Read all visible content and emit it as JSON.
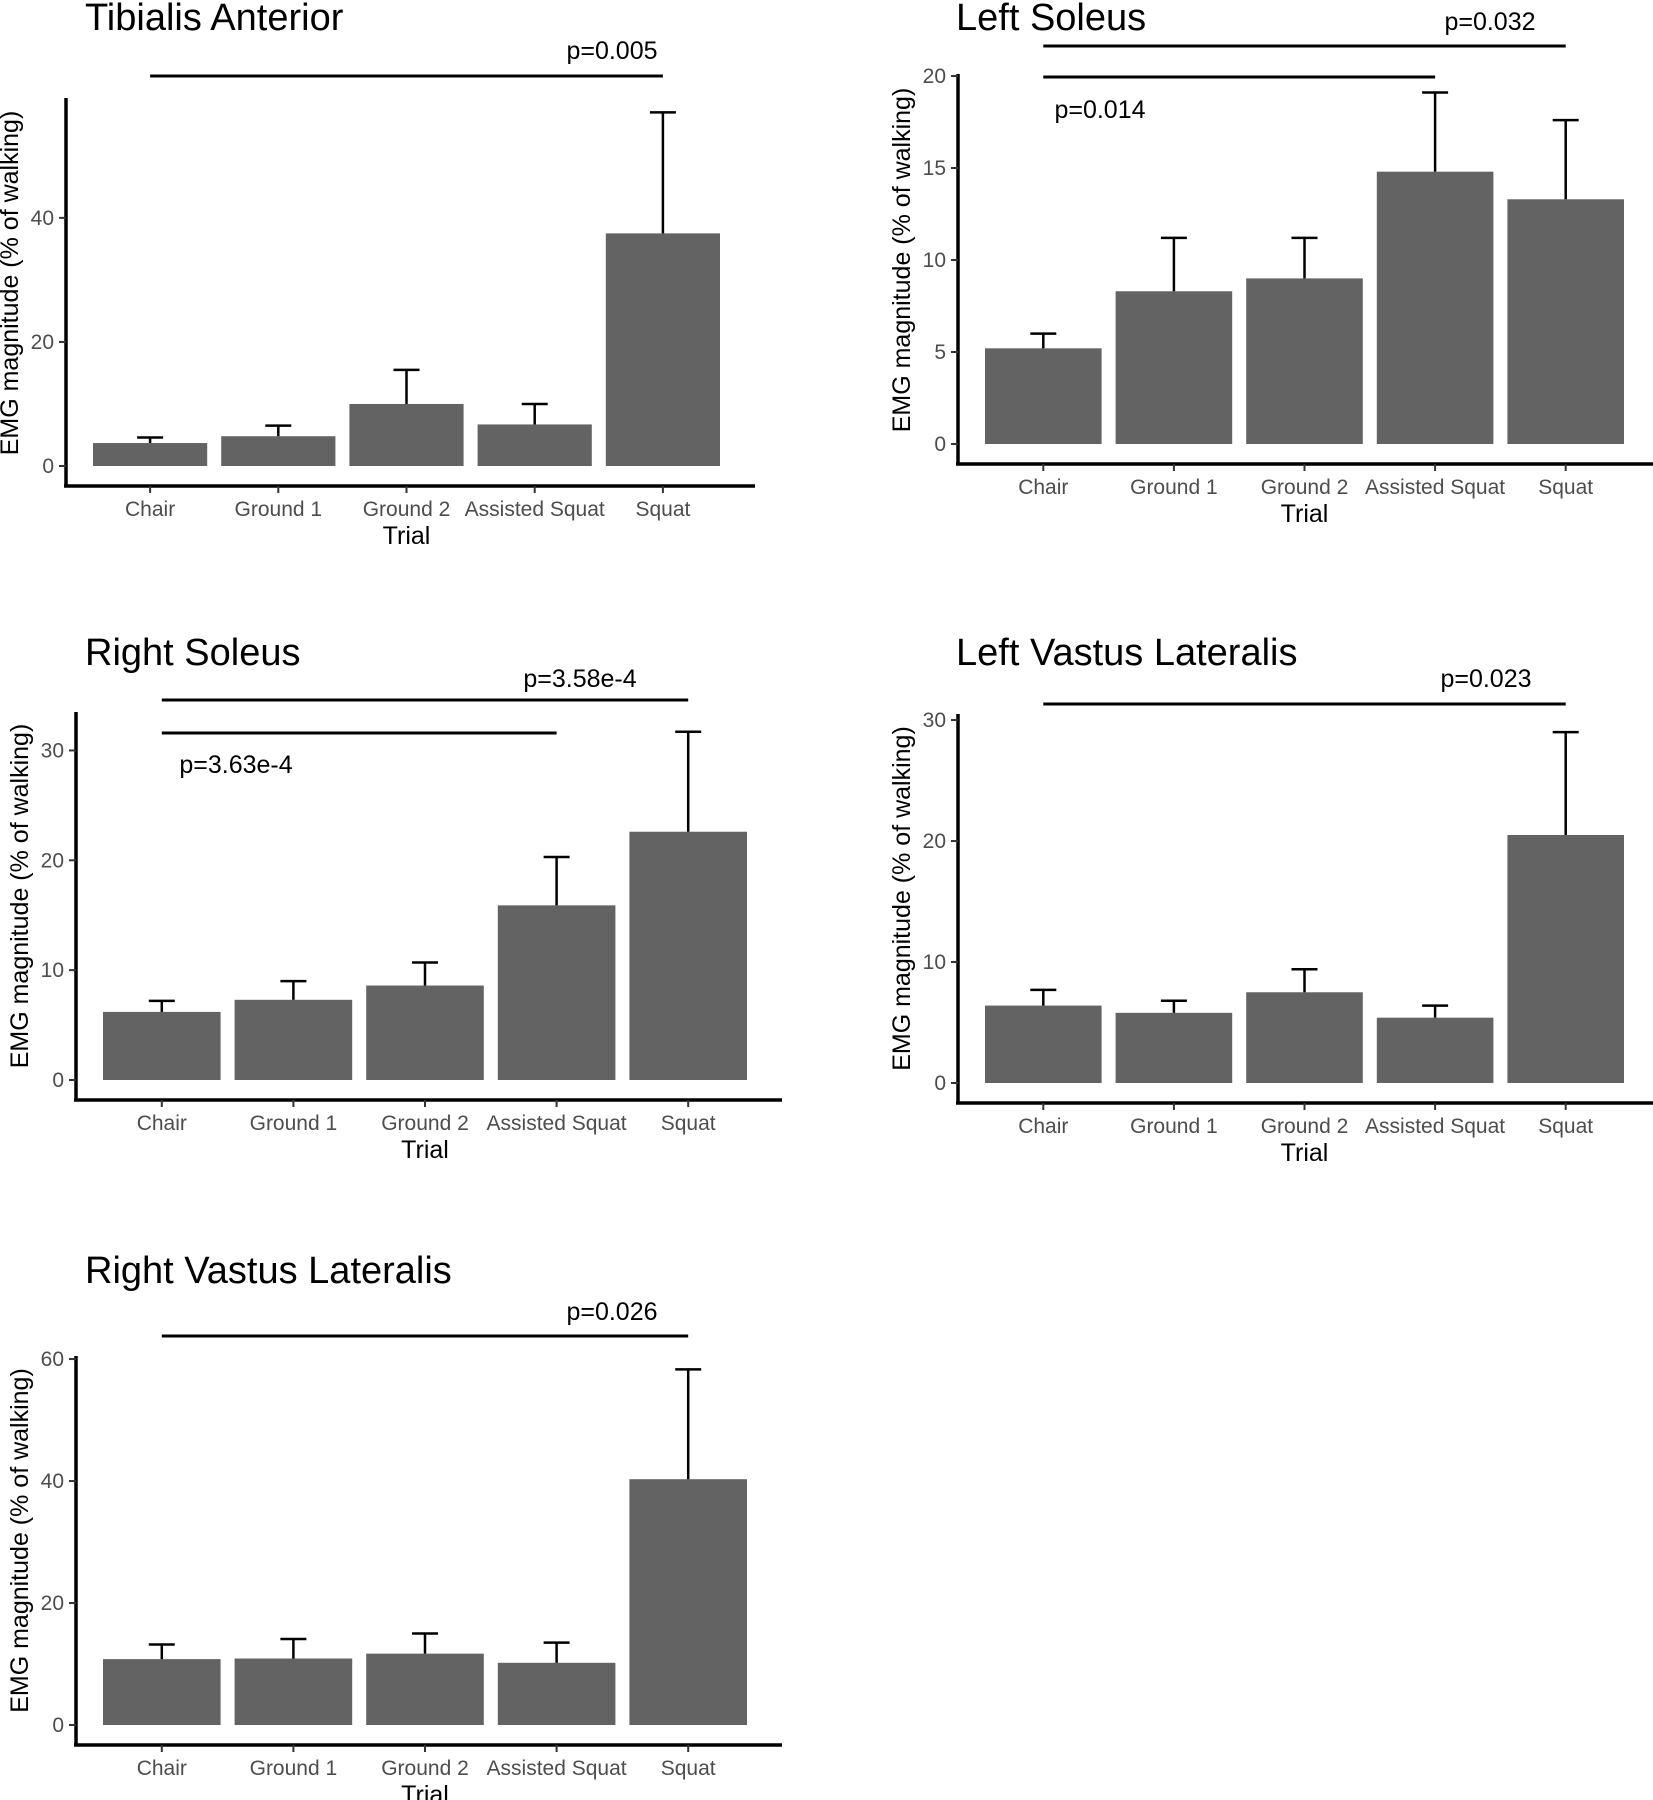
{
  "chart_data": [
    {
      "type": "bar",
      "title": "Tibialis Anterior",
      "xlabel": "Trial",
      "ylabel": "EMG magnitude (% of walking)",
      "categories": [
        "Chair",
        "Ground 1",
        "Ground 2",
        "Assisted Squat",
        "Squat"
      ],
      "values": [
        3.7,
        4.8,
        10.0,
        6.7,
        37.5
      ],
      "error_upper": [
        4.6,
        6.5,
        15.5,
        10.0,
        57.0
      ],
      "ylim": [
        0,
        59
      ],
      "yticks": [
        0,
        20,
        40
      ],
      "comparisons": [
        {
          "from": "Chair",
          "to": "Squat",
          "label": "p=0.005",
          "label_pos": "above"
        }
      ]
    },
    {
      "type": "bar",
      "title": "Left Soleus",
      "xlabel": "Trial",
      "ylabel": "EMG magnitude (% of walking)",
      "categories": [
        "Chair",
        "Ground 1",
        "Ground 2",
        "Assisted Squat",
        "Squat"
      ],
      "values": [
        5.2,
        8.3,
        9.0,
        14.8,
        13.3
      ],
      "error_upper": [
        6.0,
        11.2,
        11.2,
        19.1,
        17.6
      ],
      "ylim": [
        0,
        20
      ],
      "yticks": [
        0,
        5,
        10,
        15,
        20
      ],
      "comparisons": [
        {
          "from": "Chair",
          "to": "Squat",
          "label": "p=0.032",
          "label_pos": "above"
        },
        {
          "from": "Chair",
          "to": "Assisted Squat",
          "label": "p=0.014",
          "label_pos": "below"
        }
      ]
    },
    {
      "type": "bar",
      "title": "Right Soleus",
      "xlabel": "Trial",
      "ylabel": "EMG magnitude (% of walking)",
      "categories": [
        "Chair",
        "Ground 1",
        "Ground 2",
        "Assisted Squat",
        "Squat"
      ],
      "values": [
        6.2,
        7.3,
        8.6,
        15.9,
        22.6
      ],
      "error_upper": [
        7.2,
        9.0,
        10.7,
        20.3,
        31.7
      ],
      "ylim": [
        0,
        33.5
      ],
      "yticks": [
        0,
        10,
        20,
        30
      ],
      "comparisons": [
        {
          "from": "Chair",
          "to": "Squat",
          "label": "p=3.58e-4",
          "label_pos": "above"
        },
        {
          "from": "Chair",
          "to": "Assisted Squat",
          "label": "p=3.63e-4",
          "label_pos": "below"
        }
      ]
    },
    {
      "type": "bar",
      "title": "Left Vastus Lateralis",
      "xlabel": "Trial",
      "ylabel": "EMG magnitude (% of walking)",
      "categories": [
        "Chair",
        "Ground 1",
        "Ground 2",
        "Assisted Squat",
        "Squat"
      ],
      "values": [
        6.4,
        5.8,
        7.5,
        5.4,
        20.5
      ],
      "error_upper": [
        7.7,
        6.8,
        9.4,
        6.4,
        29.0
      ],
      "ylim": [
        0,
        30.5
      ],
      "yticks": [
        0,
        10,
        20,
        30
      ],
      "comparisons": [
        {
          "from": "Chair",
          "to": "Squat",
          "label": "p=0.023",
          "label_pos": "above"
        }
      ]
    },
    {
      "type": "bar",
      "title": "Right Vastus Lateralis",
      "xlabel": "Trial",
      "ylabel": "EMG magnitude (% of walking)",
      "categories": [
        "Chair",
        "Ground 1",
        "Ground 2",
        "Assisted Squat",
        "Squat"
      ],
      "values": [
        10.8,
        10.9,
        11.7,
        10.2,
        40.3
      ],
      "error_upper": [
        13.2,
        14.1,
        15.0,
        13.5,
        58.3
      ],
      "ylim": [
        0,
        60.5
      ],
      "yticks": [
        0,
        20,
        40,
        60
      ],
      "comparisons": [
        {
          "from": "Chair",
          "to": "Squat",
          "label": "p=0.026",
          "label_pos": "above"
        }
      ]
    }
  ],
  "colors": {
    "bar": "#636363",
    "axis": "#000000",
    "tick_text": "#4d4d4d",
    "background": "#ffffff"
  }
}
